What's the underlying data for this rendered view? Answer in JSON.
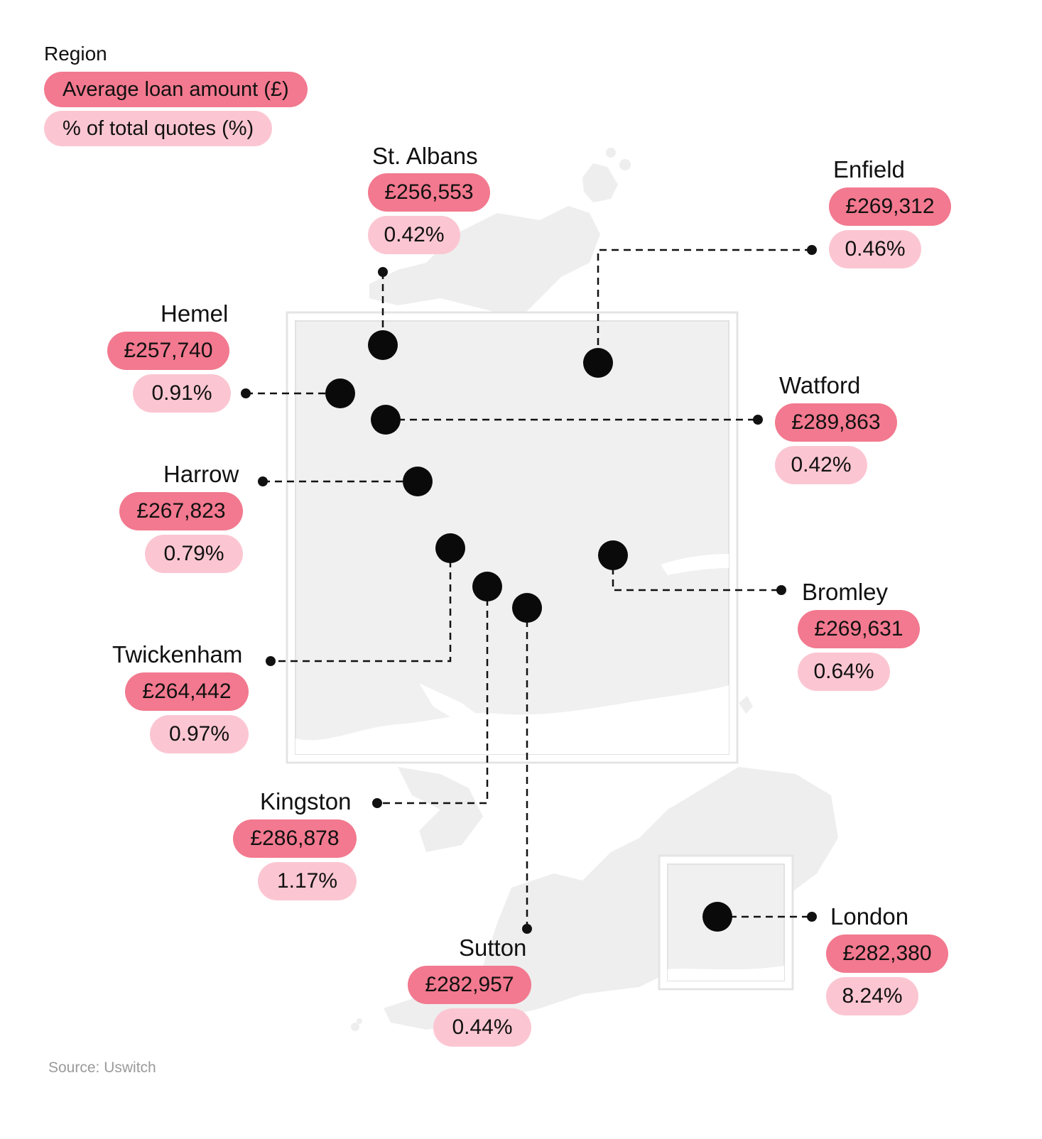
{
  "legend": {
    "title": "Region",
    "loan_label": "Average loan amount (£)",
    "pct_label": "% of total quotes (%)",
    "loan_color": "#f2798f",
    "pct_color": "#fbc6d2"
  },
  "regions": [
    {
      "name": "St. Albans",
      "loan": "£256,553",
      "pct": "0.42%"
    },
    {
      "name": "Enfield",
      "loan": "£269,312",
      "pct": "0.46%"
    },
    {
      "name": "Hemel",
      "loan": "£257,740",
      "pct": "0.91%"
    },
    {
      "name": "Watford",
      "loan": "£289,863",
      "pct": "0.42%"
    },
    {
      "name": "Harrow",
      "loan": "£267,823",
      "pct": "0.79%"
    },
    {
      "name": "Bromley",
      "loan": "£269,631",
      "pct": "0.64%"
    },
    {
      "name": "Twickenham",
      "loan": "£264,442",
      "pct": "0.97%"
    },
    {
      "name": "Kingston",
      "loan": "£286,878",
      "pct": "1.17%"
    },
    {
      "name": "Sutton",
      "loan": "£282,957",
      "pct": "0.44%"
    },
    {
      "name": "London",
      "loan": "£282,380",
      "pct": "8.24%"
    }
  ],
  "source": "Source: Uswitch"
}
